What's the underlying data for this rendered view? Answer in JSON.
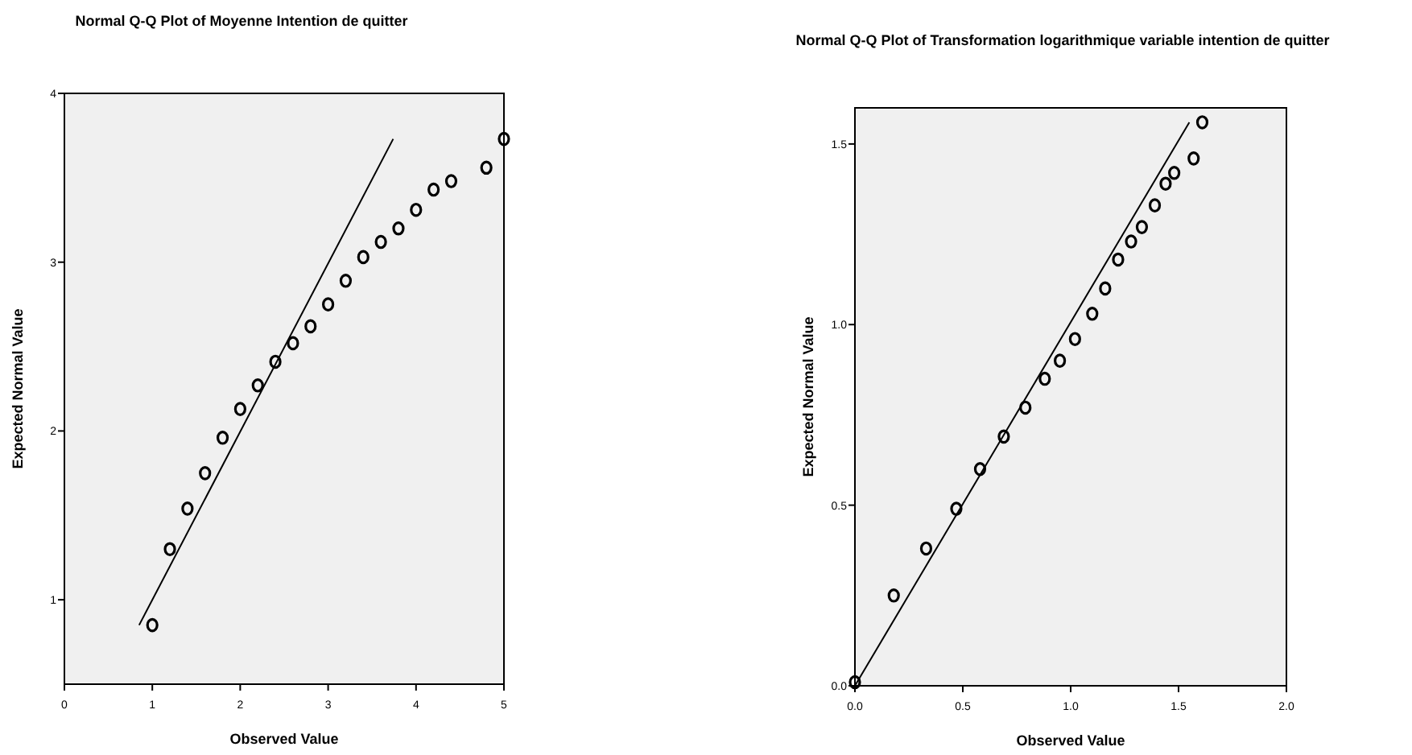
{
  "chart_data": [
    {
      "type": "scatter",
      "title": "Normal Q-Q Plot of Moyenne Intention de quitter",
      "xlabel": "Observed Value",
      "ylabel": "Expected Normal Value",
      "xlim": [
        0,
        5
      ],
      "xticks": [
        0,
        1,
        2,
        3,
        4,
        5
      ],
      "ylim": [
        0.5,
        4
      ],
      "yticks": [
        1,
        2,
        3,
        4
      ],
      "grid": false,
      "series": [
        {
          "marker": "circle",
          "color": "#000000",
          "x": [
            1.0,
            1.2,
            1.4,
            1.6,
            1.8,
            2.0,
            2.2,
            2.4,
            2.6,
            2.8,
            3.0,
            3.2,
            3.4,
            3.6,
            3.8,
            4.0,
            4.2,
            4.4,
            4.8,
            5.0
          ],
          "values": [
            0.85,
            1.3,
            1.54,
            1.75,
            1.96,
            2.13,
            2.27,
            2.41,
            2.52,
            2.62,
            2.75,
            2.89,
            3.03,
            3.12,
            3.2,
            3.31,
            3.43,
            3.48,
            3.56,
            3.73
          ]
        },
        {
          "type": "line",
          "color": "#000000",
          "line_style": "solid",
          "x": [
            0.85,
            3.74
          ],
          "values": [
            0.85,
            3.73
          ]
        }
      ]
    },
    {
      "type": "scatter",
      "title": "Normal Q-Q Plot of Transformation logarithmique variable intention de quitter",
      "xlabel": "Observed Value",
      "ylabel": "Expected Normal Value",
      "xlim": [
        0,
        2
      ],
      "xticks": [
        {
          "value": 0,
          "label": "0.0"
        },
        {
          "value": 0.5,
          "label": "0.5"
        },
        {
          "value": 1,
          "label": "1.0"
        },
        {
          "value": 1.5,
          "label": "1.5"
        },
        {
          "value": 2,
          "label": "2.0"
        }
      ],
      "ylim": [
        0,
        1.6
      ],
      "yticks": [
        {
          "value": 0,
          "label": "0.0"
        },
        {
          "value": 0.5,
          "label": "0.5"
        },
        {
          "value": 1,
          "label": "1.0"
        },
        {
          "value": 1.5,
          "label": "1.5"
        }
      ],
      "grid": false,
      "series": [
        {
          "marker": "circle",
          "color": "#000000",
          "x": [
            0.0,
            0.18,
            0.33,
            0.47,
            0.58,
            0.69,
            0.79,
            0.88,
            0.95,
            1.02,
            1.1,
            1.16,
            1.22,
            1.28,
            1.33,
            1.39,
            1.44,
            1.48,
            1.57,
            1.61
          ],
          "values": [
            0.01,
            0.25,
            0.38,
            0.49,
            0.6,
            0.69,
            0.77,
            0.85,
            0.9,
            0.96,
            1.03,
            1.1,
            1.18,
            1.23,
            1.27,
            1.33,
            1.39,
            1.42,
            1.46,
            1.56
          ]
        },
        {
          "type": "line",
          "color": "#000000",
          "line_style": "solid",
          "x": [
            0.0,
            1.55
          ],
          "values": [
            0.0,
            1.56
          ]
        }
      ]
    }
  ]
}
